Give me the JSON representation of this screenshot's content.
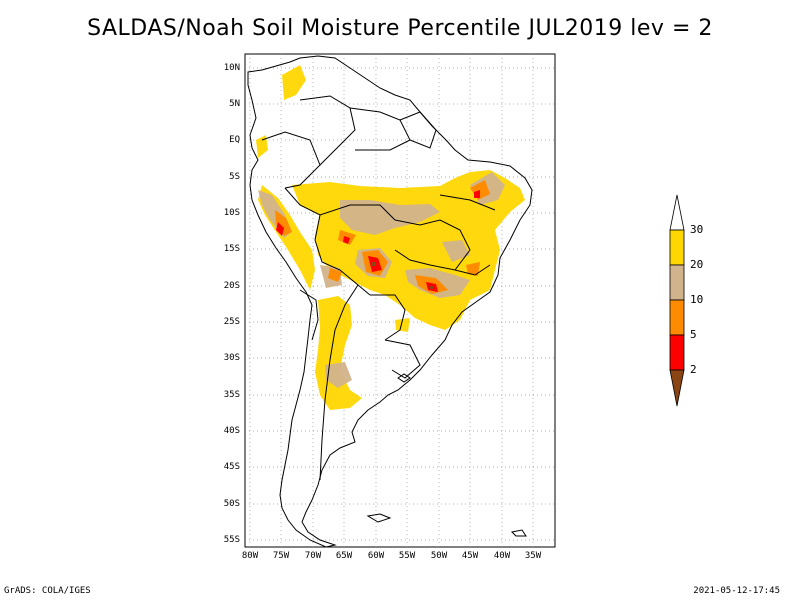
{
  "title": "SALDAS/Noah Soil Moisture Percentile JUL2019 lev = 2",
  "y_labels": [
    "10N",
    "5N",
    "EQ",
    "5S",
    "10S",
    "15S",
    "20S",
    "25S",
    "30S",
    "35S",
    "40S",
    "45S",
    "50S",
    "55S"
  ],
  "x_labels": [
    "80W",
    "75W",
    "70W",
    "65W",
    "60W",
    "55W",
    "50W",
    "45W",
    "40W",
    "35W"
  ],
  "legend": {
    "labels": [
      "30",
      "20",
      "10",
      "5",
      "2"
    ],
    "colors": {
      "above_30": "#ffffff",
      "20_30": "#ffd700",
      "10_20": "#d2b48c",
      "5_10": "#ff8c00",
      "2_5": "#ff0000",
      "below_2": "#8b4513"
    }
  },
  "footer": {
    "left": "GrADS: COLA/IGES",
    "right": "2021-05-12-17:45"
  }
}
